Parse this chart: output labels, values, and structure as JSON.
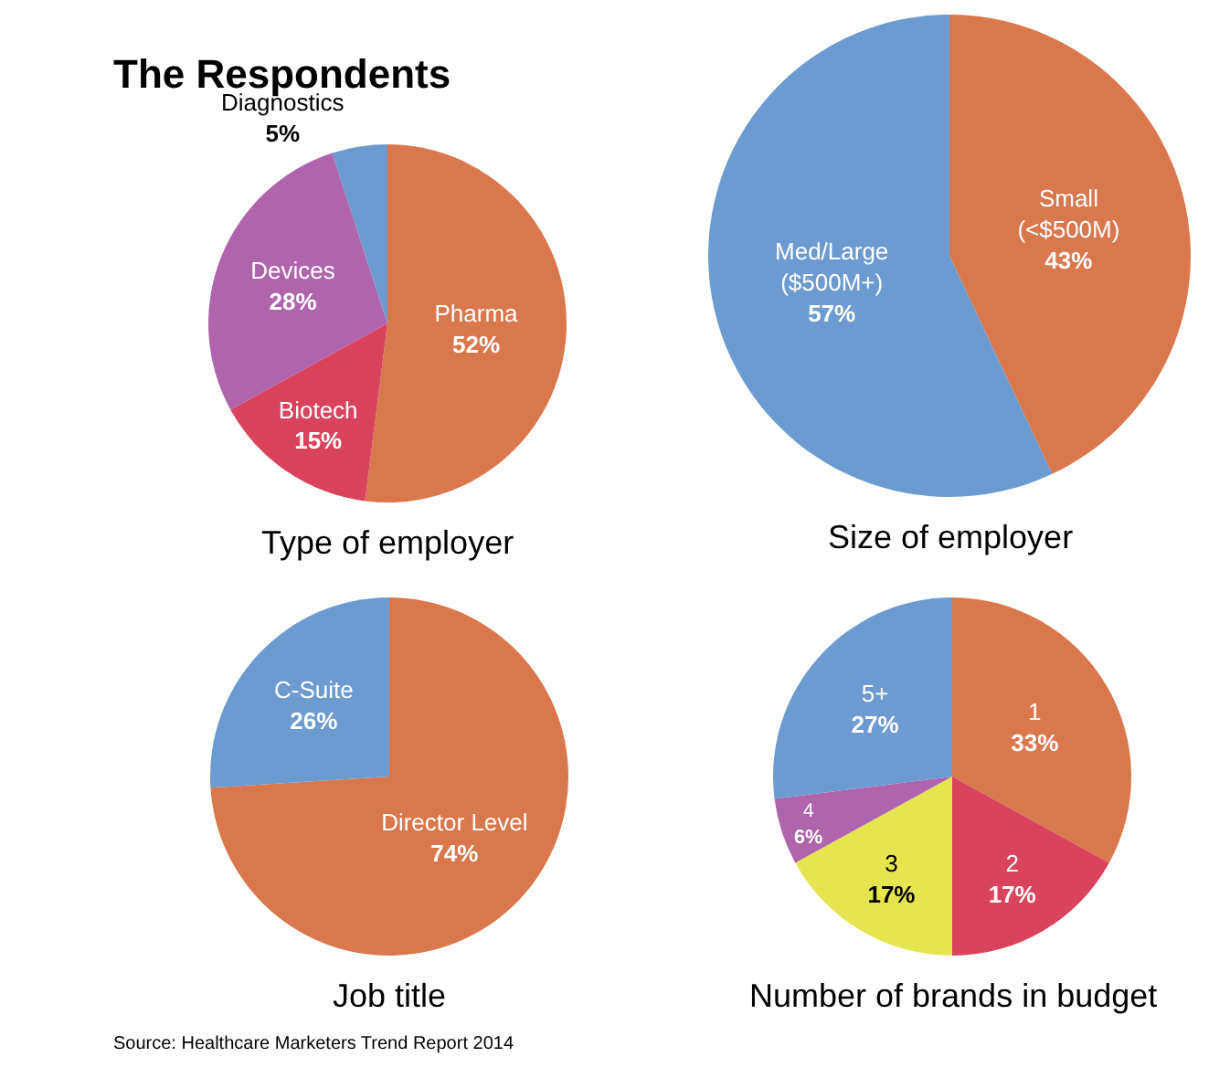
{
  "chart_data": [
    {
      "type": "pie",
      "title": "The Respondents",
      "xlabel": "Type of employer",
      "categories": [
        "Pharma",
        "Biotech",
        "Devices",
        "Diagnostics"
      ],
      "values": [
        52,
        15,
        28,
        5
      ],
      "value_labels": [
        "52%",
        "15%",
        "28%",
        "5%"
      ],
      "colors": [
        "#d9784d",
        "#d9435e",
        "#b064ad",
        "#6b9bd1"
      ],
      "legend": false
    },
    {
      "type": "pie",
      "xlabel": "Size of employer",
      "categories": [
        "Small\n(<$500M)",
        "Med/Large\n($500M+)"
      ],
      "values": [
        43,
        57
      ],
      "value_labels": [
        "43%",
        "57%"
      ],
      "colors": [
        "#d9784d",
        "#6b9bd1"
      ],
      "legend": false
    },
    {
      "type": "pie",
      "xlabel": "Job title",
      "categories": [
        "Director Level",
        "C-Suite"
      ],
      "values": [
        74,
        26
      ],
      "value_labels": [
        "74%",
        "26%"
      ],
      "colors": [
        "#d9784d",
        "#6b9bd1"
      ],
      "legend": false
    },
    {
      "type": "pie",
      "xlabel": "Number of brands in budget",
      "categories": [
        "1",
        "2",
        "3",
        "4",
        "5+"
      ],
      "values": [
        33,
        17,
        17,
        6,
        27
      ],
      "value_labels": [
        "33%",
        "17%",
        "17%",
        "6%",
        "27%"
      ],
      "colors": [
        "#d9784d",
        "#d9435e",
        "#e5e64f",
        "#b064ad",
        "#6b9bd1"
      ],
      "legend": false,
      "annotations": [
        "Source: Healthcare Marketers Trend Report 2014"
      ]
    }
  ]
}
